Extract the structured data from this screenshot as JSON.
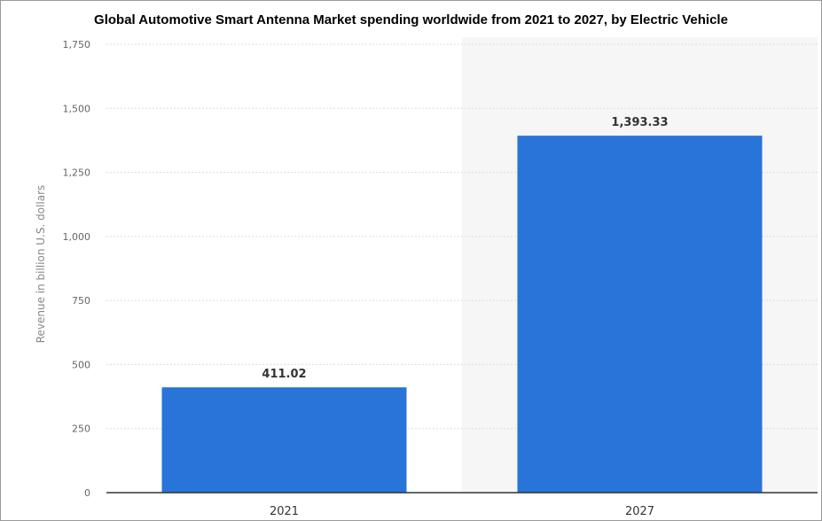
{
  "chart_data": {
    "type": "bar",
    "title": "Global Automotive Smart Antenna Market spending worldwide from 2021 to 2027, by Electric Vehicle",
    "xlabel": "",
    "ylabel": "Revenue in billion U.S. dollars",
    "categories": [
      "2021",
      "2027"
    ],
    "values": [
      411.02,
      1393.33
    ],
    "data_labels": [
      "411.02",
      "1,393.33"
    ],
    "ylim": [
      0,
      1750
    ],
    "yticks": [
      0,
      250,
      500,
      750,
      1000,
      1250,
      1500,
      1750
    ],
    "ytick_labels": [
      "0",
      "250",
      "500",
      "750",
      "1,000",
      "1,250",
      "1,500",
      "1,750"
    ],
    "grid": true,
    "highlighted_category": "2027",
    "colors": {
      "bar": "#2874d8",
      "highlight_background": "#f6f6f6",
      "grid": "#dcdcdc",
      "axis": "#333333"
    }
  }
}
